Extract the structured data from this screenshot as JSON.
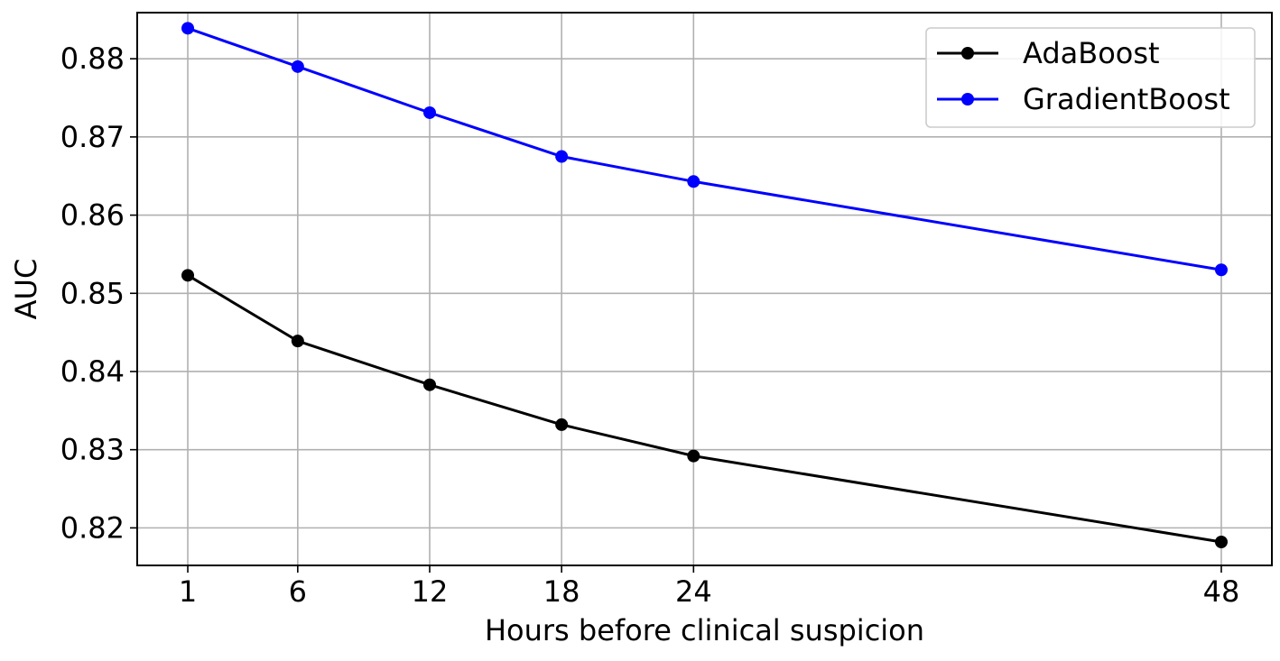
{
  "chart_data": {
    "type": "line",
    "xlabel": "Hours before clinical suspicion",
    "ylabel": "AUC",
    "x": [
      1,
      6,
      12,
      18,
      24,
      48
    ],
    "xticks": [
      "1",
      "6",
      "12",
      "18",
      "24",
      "48"
    ],
    "yticks": [
      "0.82",
      "0.83",
      "0.84",
      "0.85",
      "0.86",
      "0.87",
      "0.88"
    ],
    "xlim": [
      -1.3,
      50.3
    ],
    "ylim": [
      0.8152,
      0.8859
    ],
    "grid": true,
    "legend": "top-right",
    "series": [
      {
        "name": "AdaBoost",
        "color": "#000000",
        "values": [
          0.8523,
          0.8439,
          0.8383,
          0.8332,
          0.8292,
          0.8182
        ]
      },
      {
        "name": "GradientBoost",
        "color": "#0000ff",
        "values": [
          0.8839,
          0.879,
          0.8731,
          0.8675,
          0.8643,
          0.853
        ]
      }
    ]
  }
}
